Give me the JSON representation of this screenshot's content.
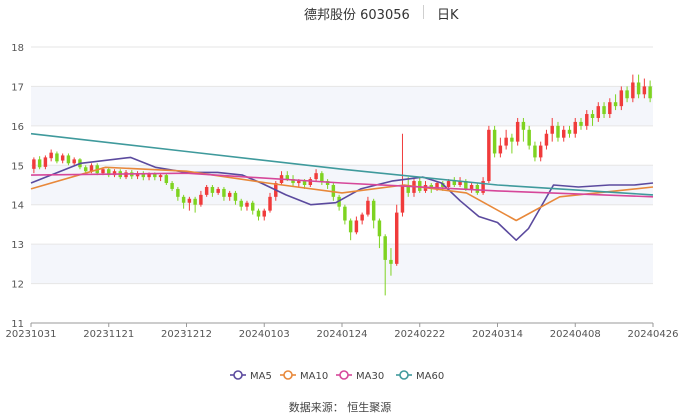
{
  "header": {
    "stock_title": "德邦股份 603056",
    "period_label": "日K"
  },
  "source_text": "数据来源： 恒生聚源",
  "colors": {
    "up": "#f03b3b",
    "down": "#7ed321",
    "ma5": "#5b4a9e",
    "ma10": "#e8883a",
    "ma30": "#d6479a",
    "ma60": "#3f9a9c",
    "grid": "#e6e6e6",
    "band": "#f4f6fb"
  },
  "chart_data": {
    "type": "candlestick",
    "title": "德邦股份 603056",
    "ylim": [
      11,
      18
    ],
    "y_ticks": [
      "11",
      "12",
      "13",
      "14",
      "15",
      "16",
      "17",
      "18"
    ],
    "x_ticks": [
      "20231031",
      "20231121",
      "20231212",
      "20240103",
      "20240124",
      "20240222",
      "20240314",
      "20240408",
      "20240426"
    ],
    "legend": [
      "MA5",
      "MA10",
      "MA30",
      "MA60"
    ],
    "grid": true,
    "legend_position": "bottom",
    "candles": [
      [
        14.91,
        15.15,
        14.8,
        15.2
      ],
      [
        15.15,
        14.95,
        14.9,
        15.23
      ],
      [
        14.96,
        15.2,
        14.9,
        15.25
      ],
      [
        15.18,
        15.32,
        15.1,
        15.4
      ],
      [
        15.3,
        15.1,
        15.05,
        15.35
      ],
      [
        15.12,
        15.25,
        15.05,
        15.3
      ],
      [
        15.25,
        15.05,
        15.0,
        15.3
      ],
      [
        15.05,
        15.15,
        15.0,
        15.2
      ],
      [
        15.15,
        14.95,
        14.9,
        15.18
      ],
      [
        14.95,
        14.85,
        14.8,
        15.0
      ],
      [
        14.85,
        15.0,
        14.8,
        15.05
      ],
      [
        15.0,
        14.8,
        14.75,
        15.05
      ],
      [
        14.8,
        14.9,
        14.75,
        14.95
      ],
      [
        14.9,
        14.75,
        14.7,
        14.95
      ],
      [
        14.75,
        14.85,
        14.7,
        14.9
      ],
      [
        14.85,
        14.7,
        14.65,
        14.9
      ],
      [
        14.7,
        14.82,
        14.65,
        14.88
      ],
      [
        14.82,
        14.72,
        14.65,
        14.88
      ],
      [
        14.72,
        14.8,
        14.65,
        14.85
      ],
      [
        14.8,
        14.7,
        14.62,
        14.85
      ],
      [
        14.7,
        14.78,
        14.62,
        14.82
      ],
      [
        14.78,
        14.7,
        14.62,
        14.82
      ],
      [
        14.7,
        14.75,
        14.6,
        14.8
      ],
      [
        14.75,
        14.55,
        14.5,
        14.8
      ],
      [
        14.55,
        14.4,
        14.35,
        14.6
      ],
      [
        14.4,
        14.2,
        14.1,
        14.45
      ],
      [
        14.2,
        14.05,
        13.9,
        14.25
      ],
      [
        14.05,
        14.15,
        13.85,
        14.2
      ],
      [
        14.15,
        14.0,
        13.8,
        14.2
      ],
      [
        14.0,
        14.25,
        13.95,
        14.35
      ],
      [
        14.25,
        14.45,
        14.2,
        14.5
      ],
      [
        14.45,
        14.3,
        14.2,
        14.5
      ],
      [
        14.3,
        14.4,
        14.25,
        14.45
      ],
      [
        14.4,
        14.2,
        14.1,
        14.45
      ],
      [
        14.2,
        14.3,
        14.1,
        14.35
      ],
      [
        14.3,
        14.1,
        14.0,
        14.35
      ],
      [
        14.1,
        13.95,
        13.85,
        14.15
      ],
      [
        13.95,
        14.05,
        13.85,
        14.1
      ],
      [
        14.05,
        13.85,
        13.75,
        14.1
      ],
      [
        13.85,
        13.7,
        13.6,
        13.9
      ],
      [
        13.7,
        13.85,
        13.6,
        13.9
      ],
      [
        13.85,
        14.2,
        13.8,
        14.3
      ],
      [
        14.2,
        14.55,
        14.1,
        14.6
      ],
      [
        14.55,
        14.75,
        14.5,
        14.85
      ],
      [
        14.75,
        14.65,
        14.6,
        14.85
      ],
      [
        14.65,
        14.55,
        14.45,
        14.75
      ],
      [
        14.55,
        14.6,
        14.45,
        14.65
      ],
      [
        14.6,
        14.5,
        14.4,
        14.65
      ],
      [
        14.5,
        14.65,
        14.45,
        14.7
      ],
      [
        14.65,
        14.8,
        14.6,
        14.9
      ],
      [
        14.8,
        14.6,
        14.5,
        14.85
      ],
      [
        14.6,
        14.5,
        14.4,
        14.65
      ],
      [
        14.5,
        14.2,
        14.1,
        14.55
      ],
      [
        14.2,
        13.95,
        13.85,
        14.25
      ],
      [
        13.95,
        13.6,
        13.5,
        14.0
      ],
      [
        13.6,
        13.3,
        13.1,
        13.65
      ],
      [
        13.3,
        13.6,
        13.25,
        13.7
      ],
      [
        13.6,
        13.75,
        13.5,
        13.8
      ],
      [
        13.75,
        14.1,
        13.7,
        14.2
      ],
      [
        14.1,
        13.6,
        13.4,
        14.15
      ],
      [
        13.6,
        13.2,
        12.9,
        13.65
      ],
      [
        13.2,
        12.6,
        11.7,
        13.25
      ],
      [
        12.6,
        12.5,
        12.2,
        12.9
      ],
      [
        12.5,
        13.8,
        12.45,
        14.0
      ],
      [
        13.8,
        14.5,
        13.7,
        15.8
      ],
      [
        14.5,
        14.3,
        14.2,
        14.7
      ],
      [
        14.3,
        14.6,
        14.2,
        14.65
      ],
      [
        14.6,
        14.35,
        14.3,
        14.7
      ],
      [
        14.35,
        14.5,
        14.3,
        14.6
      ],
      [
        14.5,
        14.4,
        14.3,
        14.55
      ],
      [
        14.4,
        14.55,
        14.35,
        14.6
      ],
      [
        14.55,
        14.45,
        14.35,
        14.6
      ],
      [
        14.45,
        14.6,
        14.4,
        14.65
      ],
      [
        14.6,
        14.5,
        14.45,
        14.7
      ],
      [
        14.5,
        14.6,
        14.45,
        14.7
      ],
      [
        14.6,
        14.4,
        14.35,
        14.65
      ],
      [
        14.4,
        14.5,
        14.3,
        14.55
      ],
      [
        14.5,
        14.3,
        14.25,
        14.55
      ],
      [
        14.3,
        14.6,
        14.25,
        14.7
      ],
      [
        14.6,
        15.9,
        14.55,
        16.0
      ],
      [
        15.9,
        15.3,
        15.2,
        16.0
      ],
      [
        15.3,
        15.5,
        15.2,
        15.7
      ],
      [
        15.5,
        15.7,
        15.4,
        15.9
      ],
      [
        15.7,
        15.6,
        15.3,
        15.8
      ],
      [
        15.6,
        16.1,
        15.5,
        16.2
      ],
      [
        16.1,
        15.9,
        15.6,
        16.2
      ],
      [
        15.9,
        15.5,
        15.4,
        16.0
      ],
      [
        15.5,
        15.2,
        15.1,
        15.6
      ],
      [
        15.2,
        15.5,
        15.1,
        15.6
      ],
      [
        15.5,
        15.8,
        15.4,
        15.9
      ],
      [
        15.8,
        16.0,
        15.6,
        16.2
      ],
      [
        16.0,
        15.7,
        15.6,
        16.1
      ],
      [
        15.7,
        15.9,
        15.6,
        16.0
      ],
      [
        15.9,
        15.8,
        15.7,
        16.0
      ],
      [
        15.8,
        16.1,
        15.7,
        16.2
      ],
      [
        16.1,
        16.0,
        15.9,
        16.2
      ],
      [
        16.0,
        16.3,
        15.9,
        16.4
      ],
      [
        16.3,
        16.2,
        16.0,
        16.4
      ],
      [
        16.2,
        16.5,
        16.1,
        16.6
      ],
      [
        16.5,
        16.3,
        16.2,
        16.6
      ],
      [
        16.3,
        16.6,
        16.2,
        16.7
      ],
      [
        16.6,
        16.5,
        16.4,
        16.8
      ],
      [
        16.5,
        16.9,
        16.4,
        17.0
      ],
      [
        16.9,
        16.7,
        16.6,
        17.0
      ],
      [
        16.7,
        17.1,
        16.6,
        17.3
      ],
      [
        17.1,
        16.8,
        16.7,
        17.3
      ],
      [
        16.8,
        17.0,
        16.7,
        17.2
      ],
      [
        17.0,
        16.7,
        16.6,
        17.15
      ]
    ],
    "series": [
      {
        "name": "MA5",
        "values": [
          [
            0,
            14.55
          ],
          [
            0.08,
            15.05
          ],
          [
            0.16,
            15.2
          ],
          [
            0.2,
            14.95
          ],
          [
            0.25,
            14.82
          ],
          [
            0.3,
            14.82
          ],
          [
            0.34,
            14.75
          ],
          [
            0.37,
            14.55
          ],
          [
            0.41,
            14.25
          ],
          [
            0.45,
            14.0
          ],
          [
            0.49,
            14.05
          ],
          [
            0.53,
            14.4
          ],
          [
            0.58,
            14.6
          ],
          [
            0.63,
            14.7
          ],
          [
            0.66,
            14.55
          ],
          [
            0.69,
            14.1
          ],
          [
            0.72,
            13.7
          ],
          [
            0.75,
            13.55
          ],
          [
            0.78,
            13.1
          ],
          [
            0.8,
            13.4
          ],
          [
            0.84,
            14.5
          ],
          [
            0.88,
            14.45
          ],
          [
            0.93,
            14.5
          ],
          [
            0.97,
            14.5
          ],
          [
            1.0,
            14.55
          ]
        ]
      },
      {
        "name": "MA10",
        "values": [
          [
            0,
            14.4
          ],
          [
            0.12,
            14.95
          ],
          [
            0.25,
            14.85
          ],
          [
            0.38,
            14.55
          ],
          [
            0.5,
            14.3
          ],
          [
            0.6,
            14.5
          ],
          [
            0.7,
            14.3
          ],
          [
            0.78,
            13.6
          ],
          [
            0.85,
            14.2
          ],
          [
            1.0,
            14.45
          ]
        ]
      },
      {
        "name": "MA30",
        "values": [
          [
            0,
            14.75
          ],
          [
            0.25,
            14.8
          ],
          [
            0.5,
            14.55
          ],
          [
            0.75,
            14.35
          ],
          [
            1.0,
            14.2
          ]
        ]
      },
      {
        "name": "MA60",
        "values": [
          [
            0,
            15.8
          ],
          [
            0.25,
            15.35
          ],
          [
            0.5,
            14.9
          ],
          [
            0.75,
            14.5
          ],
          [
            1.0,
            14.25
          ]
        ]
      }
    ]
  }
}
